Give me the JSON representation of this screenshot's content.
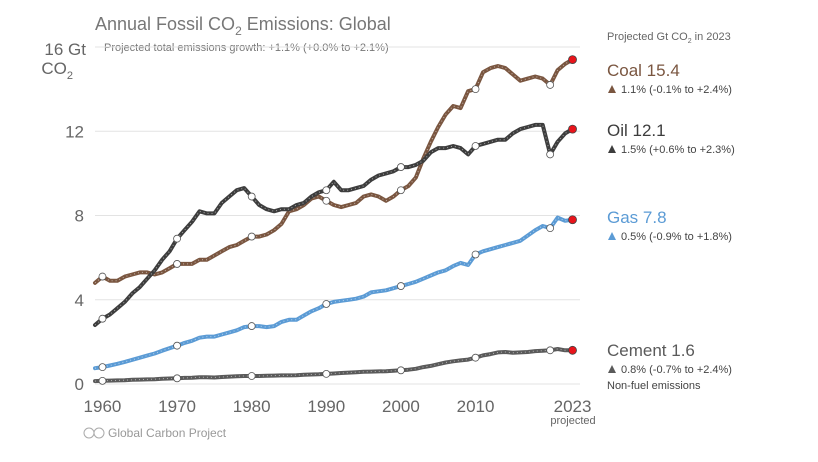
{
  "title_main": "Annual Fossil CO",
  "title_sub": "2",
  "title_rest": " Emissions: Global",
  "subtitle": "Projected total emissions growth: +1.1% (+0.0% to +2.1%)",
  "ylabel_line1": "16 Gt",
  "ylabel_line2_main": "CO",
  "ylabel_line2_sub": "2",
  "legend_header_main": "Projected Gt CO",
  "legend_header_sub": "2",
  "legend_header_rest": " in 2023",
  "credit": "Global Carbon Project",
  "x_projected_label": "projected",
  "chart_data": {
    "type": "line",
    "title": "Annual Fossil CO2 Emissions: Global",
    "ylabel": "16 Gt CO2",
    "xlim": [
      1959,
      2024
    ],
    "ylim": [
      0,
      16
    ],
    "x_ticks": [
      "1960",
      "1970",
      "1980",
      "1990",
      "2000",
      "2010",
      "2023"
    ],
    "y_ticks": [
      "0",
      "4",
      "8",
      "12"
    ],
    "grid": true,
    "legend": "right",
    "series": [
      {
        "name": "Coal",
        "label_value": "15.4",
        "growth": "1.1% (-0.1% to +2.4%)",
        "color": "#7a5640",
        "x": [
          1959,
          1960,
          1961,
          1962,
          1963,
          1964,
          1965,
          1966,
          1967,
          1968,
          1969,
          1970,
          1971,
          1972,
          1973,
          1974,
          1975,
          1976,
          1977,
          1978,
          1979,
          1980,
          1981,
          1982,
          1983,
          1984,
          1985,
          1986,
          1987,
          1988,
          1989,
          1990,
          1991,
          1992,
          1993,
          1994,
          1995,
          1996,
          1997,
          1998,
          1999,
          2000,
          2001,
          2002,
          2003,
          2004,
          2005,
          2006,
          2007,
          2008,
          2009,
          2010,
          2011,
          2012,
          2013,
          2014,
          2015,
          2016,
          2017,
          2018,
          2019,
          2020,
          2021,
          2022,
          2023
        ],
        "values": [
          4.8,
          5.1,
          4.9,
          4.9,
          5.1,
          5.2,
          5.3,
          5.3,
          5.2,
          5.3,
          5.5,
          5.7,
          5.7,
          5.7,
          5.9,
          5.9,
          6.1,
          6.3,
          6.5,
          6.6,
          6.8,
          7.0,
          7.0,
          7.1,
          7.3,
          7.6,
          8.2,
          8.3,
          8.5,
          8.8,
          8.9,
          8.7,
          8.5,
          8.4,
          8.5,
          8.6,
          8.9,
          9.0,
          8.9,
          8.7,
          8.9,
          9.2,
          9.4,
          9.8,
          10.7,
          11.5,
          12.2,
          12.8,
          13.2,
          13.1,
          13.9,
          14.0,
          14.8,
          15.0,
          15.1,
          15.0,
          14.7,
          14.4,
          14.5,
          14.6,
          14.5,
          14.2,
          14.9,
          15.2,
          15.4
        ]
      },
      {
        "name": "Oil",
        "label_value": "12.1",
        "growth": "1.5% (+0.6% to +2.3%)",
        "color": "#3d3d3d",
        "x": [
          1959,
          1960,
          1961,
          1962,
          1963,
          1964,
          1965,
          1966,
          1967,
          1968,
          1969,
          1970,
          1971,
          1972,
          1973,
          1974,
          1975,
          1976,
          1977,
          1978,
          1979,
          1980,
          1981,
          1982,
          1983,
          1984,
          1985,
          1986,
          1987,
          1988,
          1989,
          1990,
          1991,
          1992,
          1993,
          1994,
          1995,
          1996,
          1997,
          1998,
          1999,
          2000,
          2001,
          2002,
          2003,
          2004,
          2005,
          2006,
          2007,
          2008,
          2009,
          2010,
          2011,
          2012,
          2013,
          2014,
          2015,
          2016,
          2017,
          2018,
          2019,
          2020,
          2021,
          2022,
          2023
        ],
        "values": [
          2.8,
          3.1,
          3.3,
          3.6,
          3.9,
          4.3,
          4.6,
          5.0,
          5.4,
          5.9,
          6.3,
          6.9,
          7.3,
          7.7,
          8.2,
          8.1,
          8.1,
          8.6,
          8.9,
          9.2,
          9.3,
          8.9,
          8.5,
          8.3,
          8.2,
          8.3,
          8.3,
          8.5,
          8.6,
          8.9,
          9.1,
          9.2,
          9.6,
          9.2,
          9.2,
          9.3,
          9.4,
          9.7,
          9.9,
          10.0,
          10.1,
          10.3,
          10.3,
          10.4,
          10.6,
          11.0,
          11.2,
          11.2,
          11.3,
          11.2,
          10.9,
          11.3,
          11.4,
          11.5,
          11.6,
          11.6,
          11.9,
          12.1,
          12.2,
          12.3,
          12.3,
          10.9,
          11.5,
          11.9,
          12.1
        ]
      },
      {
        "name": "Gas",
        "label_value": "7.8",
        "growth": "0.5% (-0.9% to +1.8%)",
        "color": "#5b9bd5",
        "x": [
          1959,
          1960,
          1961,
          1962,
          1963,
          1964,
          1965,
          1966,
          1967,
          1968,
          1969,
          1970,
          1971,
          1972,
          1973,
          1974,
          1975,
          1976,
          1977,
          1978,
          1979,
          1980,
          1981,
          1982,
          1983,
          1984,
          1985,
          1986,
          1987,
          1988,
          1989,
          1990,
          1991,
          1992,
          1993,
          1994,
          1995,
          1996,
          1997,
          1998,
          1999,
          2000,
          2001,
          2002,
          2003,
          2004,
          2005,
          2006,
          2007,
          2008,
          2009,
          2010,
          2011,
          2012,
          2013,
          2014,
          2015,
          2016,
          2017,
          2018,
          2019,
          2020,
          2021,
          2022,
          2023
        ],
        "values": [
          0.75,
          0.8,
          0.88,
          0.96,
          1.05,
          1.15,
          1.25,
          1.35,
          1.45,
          1.58,
          1.7,
          1.82,
          1.95,
          2.05,
          2.2,
          2.25,
          2.25,
          2.35,
          2.45,
          2.55,
          2.7,
          2.75,
          2.75,
          2.7,
          2.75,
          2.95,
          3.05,
          3.05,
          3.25,
          3.45,
          3.6,
          3.8,
          3.9,
          3.95,
          4.0,
          4.05,
          4.15,
          4.35,
          4.4,
          4.45,
          4.55,
          4.65,
          4.75,
          4.85,
          5.0,
          5.15,
          5.3,
          5.4,
          5.6,
          5.75,
          5.65,
          6.15,
          6.3,
          6.4,
          6.5,
          6.6,
          6.7,
          6.8,
          7.05,
          7.3,
          7.5,
          7.4,
          7.9,
          7.75,
          7.8
        ]
      },
      {
        "name": "Cement",
        "label_value": "1.6",
        "growth": "0.8% (-0.7% to +2.4%)",
        "note": "Non-fuel emissions",
        "color": "#5a5a5a",
        "x": [
          1959,
          1960,
          1961,
          1962,
          1963,
          1964,
          1965,
          1966,
          1967,
          1968,
          1969,
          1970,
          1971,
          1972,
          1973,
          1974,
          1975,
          1976,
          1977,
          1978,
          1979,
          1980,
          1981,
          1982,
          1983,
          1984,
          1985,
          1986,
          1987,
          1988,
          1989,
          1990,
          1991,
          1992,
          1993,
          1994,
          1995,
          1996,
          1997,
          1998,
          1999,
          2000,
          2001,
          2002,
          2003,
          2004,
          2005,
          2006,
          2007,
          2008,
          2009,
          2010,
          2011,
          2012,
          2013,
          2014,
          2015,
          2016,
          2017,
          2018,
          2019,
          2020,
          2021,
          2022,
          2023
        ],
        "values": [
          0.14,
          0.15,
          0.16,
          0.17,
          0.18,
          0.2,
          0.21,
          0.22,
          0.23,
          0.25,
          0.26,
          0.27,
          0.29,
          0.3,
          0.32,
          0.32,
          0.31,
          0.33,
          0.35,
          0.37,
          0.38,
          0.38,
          0.38,
          0.39,
          0.4,
          0.41,
          0.41,
          0.42,
          0.44,
          0.45,
          0.46,
          0.48,
          0.5,
          0.52,
          0.54,
          0.56,
          0.58,
          0.59,
          0.6,
          0.61,
          0.63,
          0.65,
          0.68,
          0.72,
          0.8,
          0.86,
          0.94,
          1.02,
          1.08,
          1.12,
          1.16,
          1.25,
          1.36,
          1.42,
          1.5,
          1.52,
          1.48,
          1.5,
          1.52,
          1.56,
          1.58,
          1.6,
          1.66,
          1.6,
          1.6
        ]
      }
    ]
  }
}
